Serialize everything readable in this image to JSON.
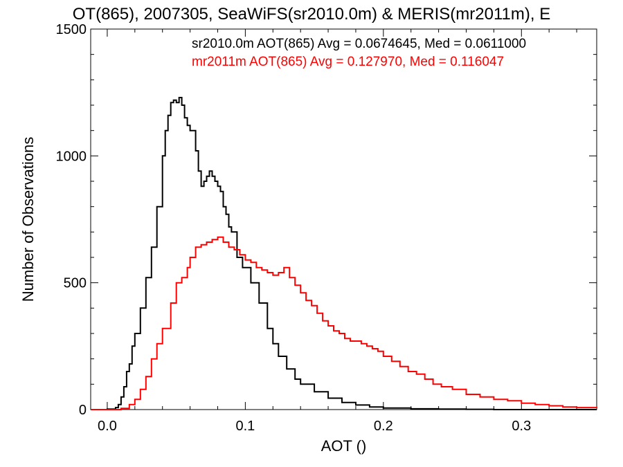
{
  "chart_data": {
    "type": "line",
    "title": "OT(865), 2007305, SeaWiFS(sr2010.0m) & MERIS(mr2011m), E",
    "xlabel": "AOT ()",
    "ylabel": "Number of Observations",
    "xlim": [
      -0.012,
      0.3545
    ],
    "ylim": [
      0,
      1500
    ],
    "x_ticks": [
      0.0,
      0.1,
      0.2,
      0.3
    ],
    "x_tick_labels": [
      "0.0",
      "0.1",
      "0.2",
      "0.3"
    ],
    "y_ticks": [
      0,
      500,
      1000,
      1500
    ],
    "y_tick_labels": [
      "0",
      "500",
      "1000",
      "1500"
    ],
    "x_minor_step": 0.02,
    "y_minor_step": 100,
    "grid": false,
    "series": [
      {
        "name": "sr2010.0m",
        "color": "#000000",
        "annotation": "sr2010.0m AOT(865) Avg = 0.0674645, Med = 0.0611000",
        "x": [
          -0.012,
          -0.002,
          0.0,
          0.006,
          0.008,
          0.01,
          0.012,
          0.014,
          0.016,
          0.018,
          0.02,
          0.024,
          0.028,
          0.032,
          0.036,
          0.04,
          0.042,
          0.044,
          0.046,
          0.048,
          0.05,
          0.052,
          0.054,
          0.056,
          0.058,
          0.06,
          0.064,
          0.066,
          0.068,
          0.07,
          0.072,
          0.074,
          0.076,
          0.078,
          0.08,
          0.082,
          0.084,
          0.086,
          0.088,
          0.09,
          0.094,
          0.098,
          0.104,
          0.11,
          0.116,
          0.12,
          0.124,
          0.13,
          0.136,
          0.14,
          0.15,
          0.16,
          0.17,
          0.18,
          0.19,
          0.2,
          0.22,
          0.24,
          0.26,
          0.28,
          0.3,
          0.3545
        ],
        "y": [
          0,
          0,
          2,
          8,
          20,
          50,
          90,
          150,
          180,
          250,
          300,
          400,
          520,
          640,
          800,
          1000,
          1100,
          1160,
          1210,
          1220,
          1210,
          1230,
          1200,
          1150,
          1120,
          1100,
          1020,
          940,
          880,
          900,
          920,
          940,
          920,
          900,
          880,
          860,
          800,
          770,
          720,
          700,
          600,
          560,
          500,
          420,
          320,
          260,
          210,
          160,
          120,
          100,
          70,
          45,
          28,
          18,
          10,
          6,
          3,
          2,
          1,
          0,
          0,
          0
        ]
      },
      {
        "name": "mr2011m",
        "color": "#ff0000",
        "annotation": "mr2011m AOT(865) Avg = 0.127970, Med = 0.116047",
        "x": [
          -0.012,
          0.0,
          0.01,
          0.016,
          0.02,
          0.024,
          0.028,
          0.032,
          0.036,
          0.04,
          0.046,
          0.05,
          0.054,
          0.058,
          0.06,
          0.064,
          0.068,
          0.072,
          0.076,
          0.08,
          0.084,
          0.088,
          0.092,
          0.096,
          0.1,
          0.104,
          0.108,
          0.112,
          0.116,
          0.12,
          0.124,
          0.128,
          0.132,
          0.136,
          0.14,
          0.144,
          0.148,
          0.152,
          0.156,
          0.16,
          0.164,
          0.168,
          0.172,
          0.176,
          0.18,
          0.184,
          0.188,
          0.192,
          0.196,
          0.2,
          0.206,
          0.212,
          0.218,
          0.224,
          0.23,
          0.236,
          0.242,
          0.25,
          0.26,
          0.27,
          0.28,
          0.29,
          0.3,
          0.31,
          0.32,
          0.33,
          0.34,
          0.3545
        ],
        "y": [
          0,
          0,
          5,
          20,
          40,
          80,
          130,
          200,
          260,
          320,
          420,
          500,
          520,
          560,
          600,
          640,
          650,
          660,
          670,
          680,
          660,
          640,
          630,
          610,
          590,
          580,
          560,
          550,
          540,
          530,
          540,
          560,
          520,
          490,
          460,
          430,
          410,
          380,
          350,
          330,
          310,
          300,
          280,
          270,
          270,
          260,
          250,
          240,
          230,
          210,
          190,
          170,
          150,
          140,
          120,
          100,
          90,
          80,
          60,
          50,
          40,
          35,
          25,
          20,
          15,
          10,
          8,
          6
        ]
      }
    ]
  }
}
